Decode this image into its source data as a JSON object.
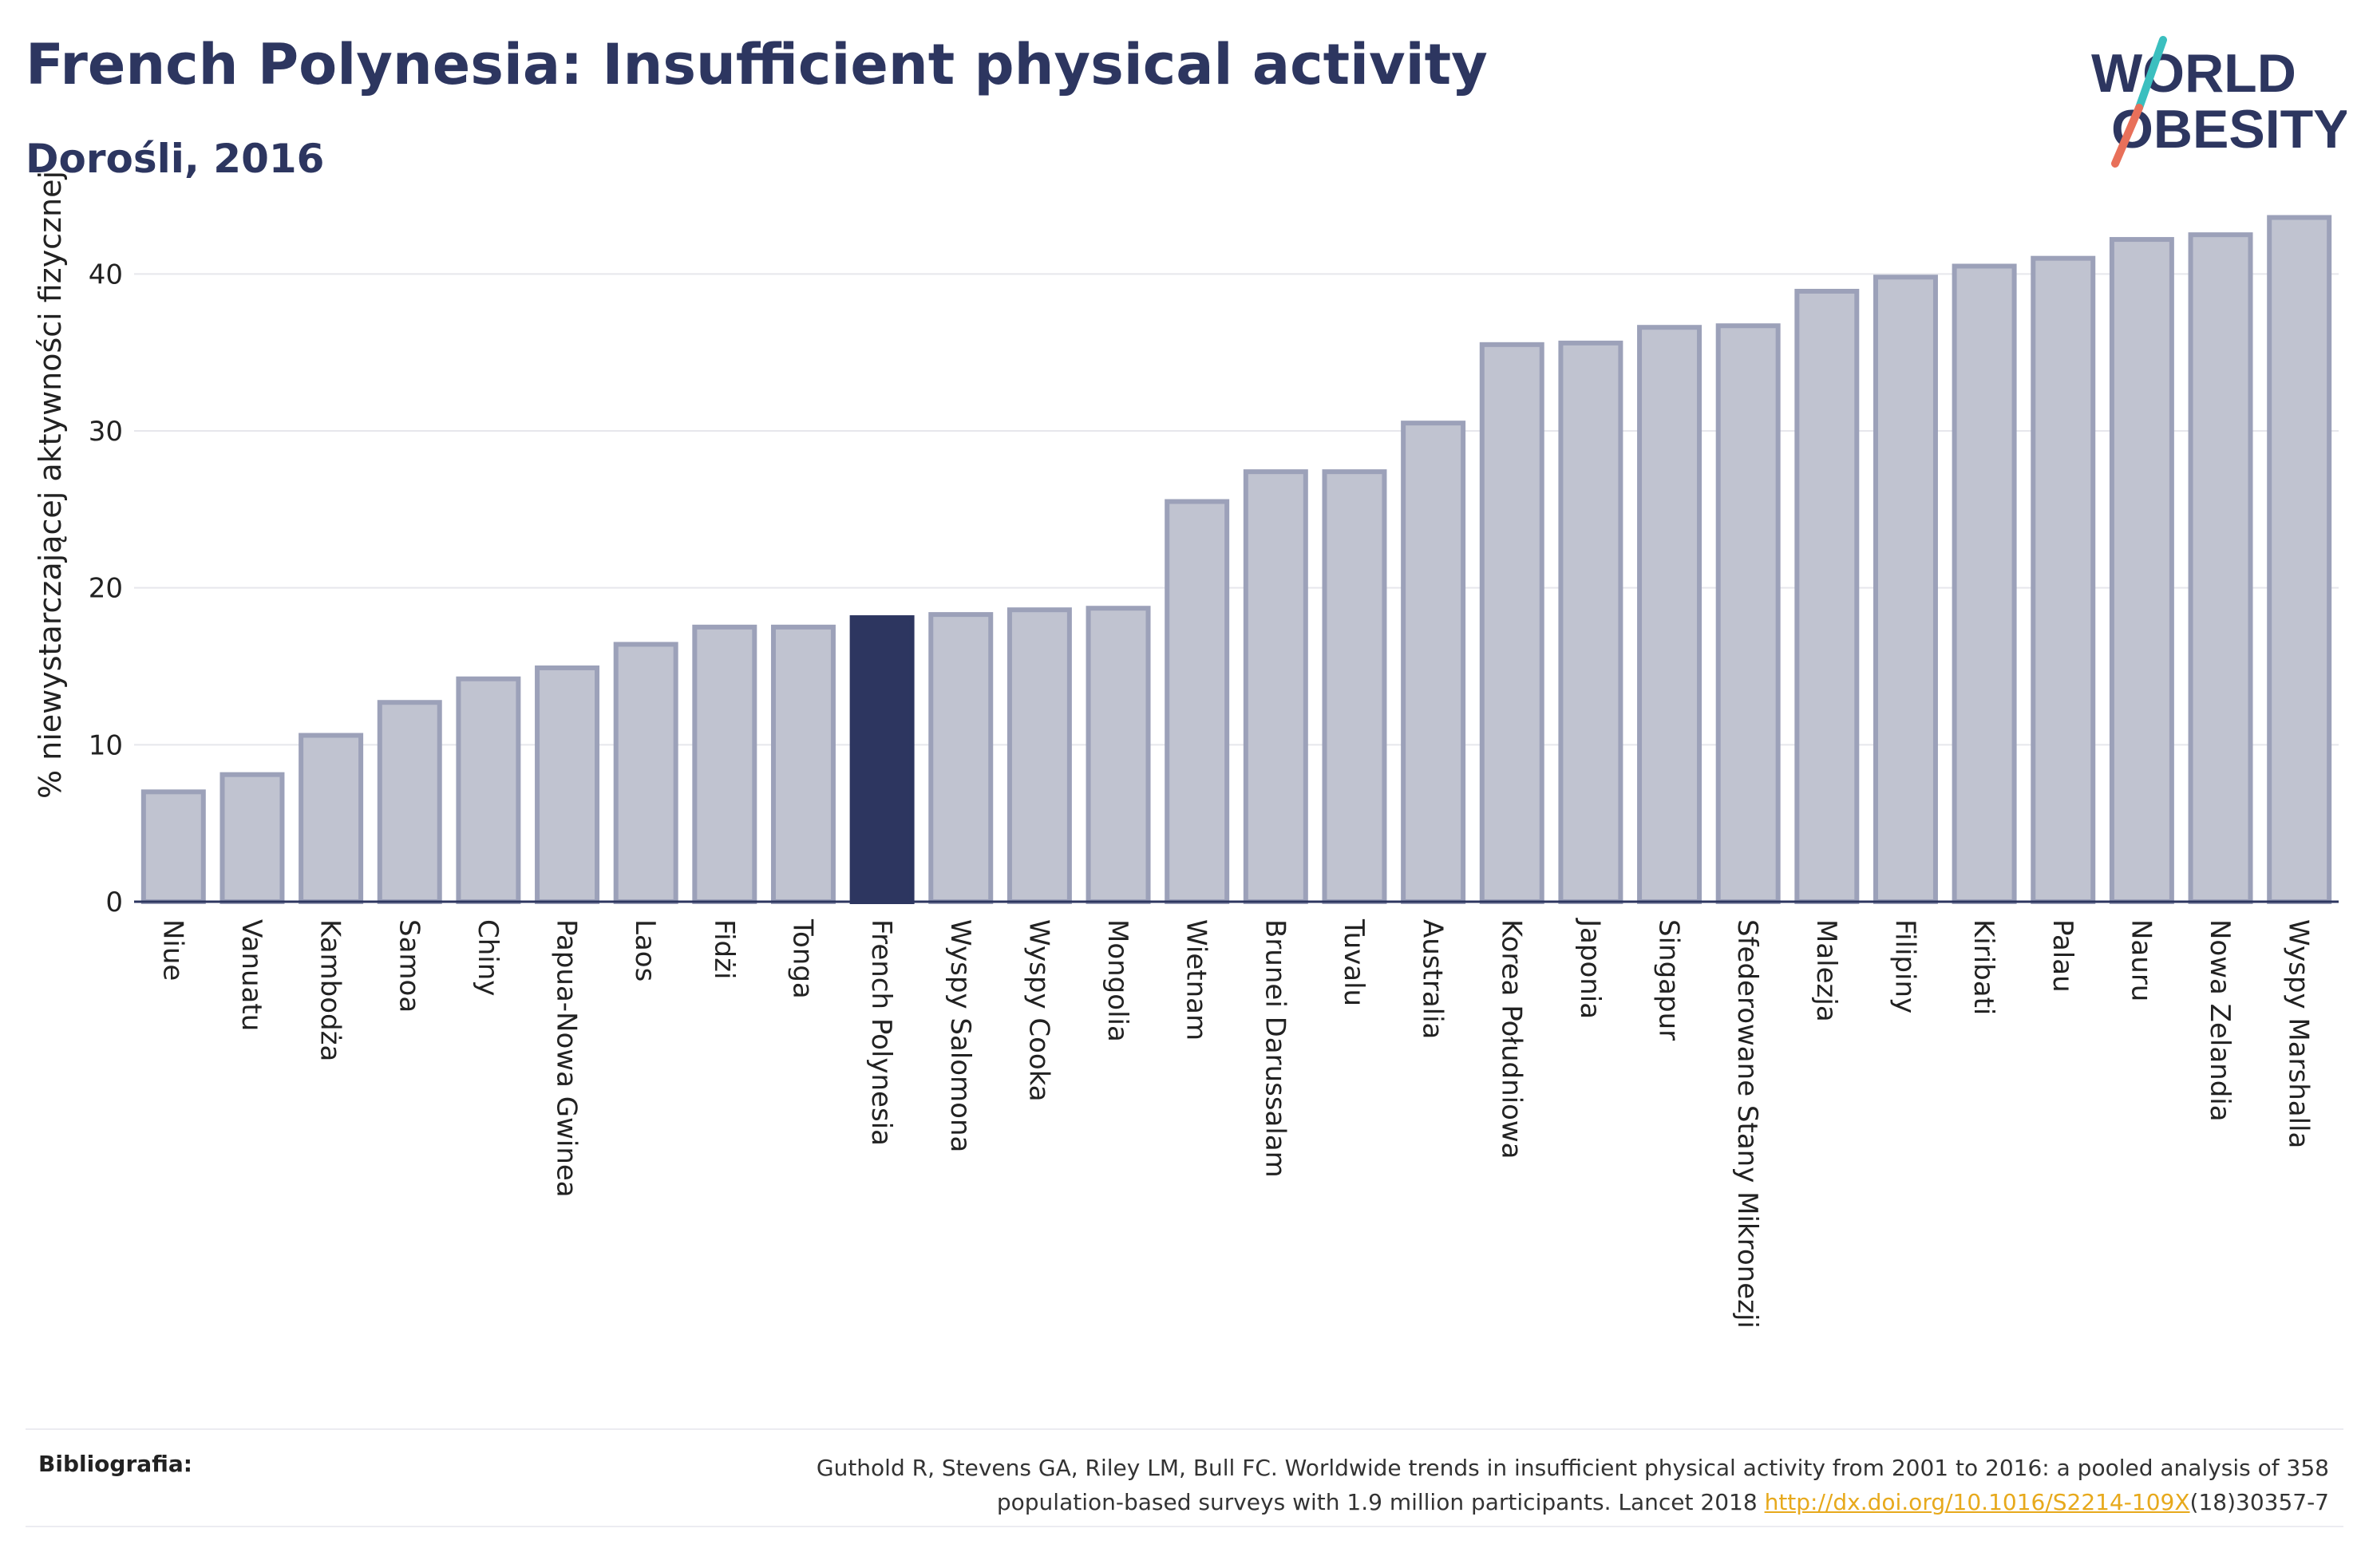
{
  "title": "French Polynesia: Insufficient physical activity",
  "subtitle": "Dorośli, 2016",
  "logo": {
    "line1": "WORLD",
    "line2": "OBESITY"
  },
  "footer": {
    "label": "Bibliografia:",
    "text_line1": "Guthold R, Stevens GA, Riley LM, Bull FC. Worldwide trends in insufficient physical activity from 2001 to 2016: a pooled analysis of 358",
    "text_line2_prefix": "population-based surveys with 1.9 million participants. Lancet 2018 ",
    "link": "http://dx.doi.org/10.1016/S2214-109X",
    "text_line2_suffix": "(18)30357-7"
  },
  "colors": {
    "bar": "#c0c3d0",
    "bar_border": "#9ca1b9",
    "highlight": "#2d3660",
    "title": "#2d3660",
    "link": "#e7a91c",
    "logo_teal": "#3bbfbf",
    "logo_coral": "#e8705a"
  },
  "chart_data": {
    "type": "bar",
    "ylabel": "% niewystarczającej aktywności fizycznej",
    "ylim": [
      0,
      45
    ],
    "yticks": [
      0,
      10,
      20,
      30,
      40
    ],
    "grid": true,
    "highlight": "French Polynesia",
    "categories": [
      "Niue",
      "Vanuatu",
      "Kambodża",
      "Samoa",
      "Chiny",
      "Papua-Nowa Gwinea",
      "Laos",
      "Fidżi",
      "Tonga",
      "French Polynesia",
      "Wyspy Salomona",
      "Wyspy Cooka",
      "Mongolia",
      "Wietnam",
      "Brunei Darussalam",
      "Tuvalu",
      "Australia",
      "Korea Południowa",
      "Japonia",
      "Singapur",
      "Sfederowane Stany Mikronezji",
      "Malezja",
      "Filipiny",
      "Kiribati",
      "Palau",
      "Nauru",
      "Nowa Zelandia",
      "Wyspy Marshalla"
    ],
    "values": [
      7.0,
      8.1,
      10.6,
      12.7,
      14.2,
      14.9,
      16.4,
      17.5,
      17.5,
      18.1,
      18.3,
      18.6,
      18.7,
      25.5,
      27.4,
      27.4,
      30.5,
      35.5,
      35.6,
      36.6,
      36.7,
      38.9,
      39.8,
      40.5,
      41.0,
      42.2,
      42.5,
      43.6
    ]
  }
}
